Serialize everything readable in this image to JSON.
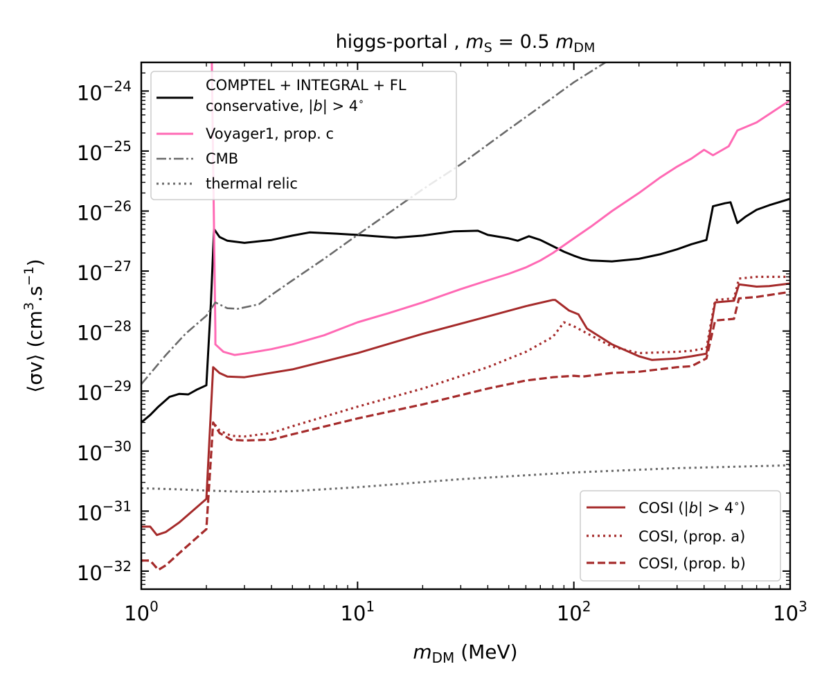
{
  "chart_data": {
    "type": "line",
    "title": "higgs-portal ,  m_S = 0.5 m_DM",
    "title_parts": {
      "prefix": "higgs-portal ,  ",
      "m": "m",
      "sub_s": "S",
      "eq": " = 0.5 ",
      "m2": "m",
      "sub_dm": "DM"
    },
    "xlabel": "m_DM (MeV)",
    "xlabel_parts": {
      "m": "m",
      "sub": "DM",
      "unit": " (MeV)"
    },
    "ylabel": "⟨σv⟩ (cm³.s⁻¹)",
    "ylabel_parts": {
      "pre": "⟨σv⟩ (cm",
      "sup1": "3",
      "mid": ".s",
      "sup2": "−1",
      "post": ")"
    },
    "xscale": "log",
    "yscale": "log",
    "xlim": [
      1,
      1000
    ],
    "ylim": [
      5e-33,
      3e-24
    ],
    "x_ticks": [
      {
        "base": "10",
        "exp": "0",
        "value": 1
      },
      {
        "base": "10",
        "exp": "1",
        "value": 10
      },
      {
        "base": "10",
        "exp": "2",
        "value": 100
      },
      {
        "base": "10",
        "exp": "3",
        "value": 1000
      }
    ],
    "y_ticks": [
      {
        "base": "10",
        "exp": "−24",
        "value": 1e-24
      },
      {
        "base": "10",
        "exp": "−25",
        "value": 1e-25
      },
      {
        "base": "10",
        "exp": "−26",
        "value": 1e-26
      },
      {
        "base": "10",
        "exp": "−27",
        "value": 1e-27
      },
      {
        "base": "10",
        "exp": "−28",
        "value": 1e-28
      },
      {
        "base": "10",
        "exp": "−29",
        "value": 1e-29
      },
      {
        "base": "10",
        "exp": "−30",
        "value": 1e-30
      },
      {
        "base": "10",
        "exp": "−31",
        "value": 1e-31
      },
      {
        "base": "10",
        "exp": "−32",
        "value": 1e-32
      }
    ],
    "series": [
      {
        "name": "COMPTEL + INTEGRAL + FL conservative, |b| > 4°",
        "legend_line1": "COMPTEL + INTEGRAL + FL",
        "legend_line2": "conservative, |b| > 4°",
        "legend_line2_parts": {
          "pre": "conservative, |",
          "b": "b",
          "post": "| > 4",
          "sup": "∘"
        },
        "color": "#000000",
        "dash": "solid",
        "width": 3,
        "points": [
          [
            1,
            3e-30
          ],
          [
            1.1,
            4e-30
          ],
          [
            1.2,
            5.5e-30
          ],
          [
            1.35,
            8e-30
          ],
          [
            1.5,
            9e-30
          ],
          [
            1.65,
            8.8e-30
          ],
          [
            1.8,
            1.05e-29
          ],
          [
            2.0,
            1.25e-29
          ],
          [
            2.1,
            3e-28
          ],
          [
            2.17,
            5e-27
          ],
          [
            2.3,
            3.7e-27
          ],
          [
            2.5,
            3.2e-27
          ],
          [
            3,
            2.95e-27
          ],
          [
            4,
            3.3e-27
          ],
          [
            5,
            3.9e-27
          ],
          [
            6,
            4.4e-27
          ],
          [
            8,
            4.2e-27
          ],
          [
            10,
            4e-27
          ],
          [
            12,
            3.8e-27
          ],
          [
            15,
            3.6e-27
          ],
          [
            20,
            3.9e-27
          ],
          [
            28,
            4.6e-27
          ],
          [
            36,
            4.7e-27
          ],
          [
            40,
            4e-27
          ],
          [
            50,
            3.5e-27
          ],
          [
            55,
            3.2e-27
          ],
          [
            62,
            3.8e-27
          ],
          [
            70,
            3.3e-27
          ],
          [
            80,
            2.6e-27
          ],
          [
            90,
            2.1e-27
          ],
          [
            100,
            1.8e-27
          ],
          [
            110,
            1.6e-27
          ],
          [
            120,
            1.5e-27
          ],
          [
            150,
            1.45e-27
          ],
          [
            200,
            1.6e-27
          ],
          [
            250,
            1.9e-27
          ],
          [
            300,
            2.3e-27
          ],
          [
            350,
            2.8e-27
          ],
          [
            410,
            3.3e-27
          ],
          [
            440,
            1.2e-26
          ],
          [
            500,
            1.35e-26
          ],
          [
            530,
            1.4e-26
          ],
          [
            570,
            6.3e-27
          ],
          [
            620,
            8e-27
          ],
          [
            700,
            1.05e-26
          ],
          [
            800,
            1.25e-26
          ],
          [
            1000,
            1.6e-26
          ]
        ]
      },
      {
        "name": "Voyager1, prop. c",
        "legend_label": "Voyager1, prop. c",
        "color": "#ff69b4",
        "dash": "solid",
        "width": 3,
        "points": [
          [
            2.12,
            3e-24
          ],
          [
            2.2,
            1e-28
          ],
          [
            2.2,
            6e-29
          ],
          [
            2.4,
            4.5e-29
          ],
          [
            2.7,
            4e-29
          ],
          [
            3,
            4.2e-29
          ],
          [
            4,
            5e-29
          ],
          [
            5,
            6e-29
          ],
          [
            7,
            8.5e-29
          ],
          [
            10,
            1.4e-28
          ],
          [
            14,
            2e-28
          ],
          [
            20,
            3e-28
          ],
          [
            30,
            5e-28
          ],
          [
            40,
            7e-28
          ],
          [
            50,
            9e-28
          ],
          [
            60,
            1.15e-27
          ],
          [
            70,
            1.5e-27
          ],
          [
            80,
            2e-27
          ],
          [
            100,
            3.5e-27
          ],
          [
            120,
            5.5e-27
          ],
          [
            150,
            1e-26
          ],
          [
            200,
            2e-26
          ],
          [
            250,
            3.6e-26
          ],
          [
            300,
            5.5e-26
          ],
          [
            350,
            7.5e-26
          ],
          [
            400,
            1.05e-25
          ],
          [
            440,
            8.5e-26
          ],
          [
            520,
            1.2e-25
          ],
          [
            570,
            2.2e-25
          ],
          [
            700,
            3e-25
          ],
          [
            1000,
            7e-25
          ]
        ]
      },
      {
        "name": "CMB",
        "legend_label": "CMB",
        "color": "#696969",
        "dash": "dashdot",
        "width": 2.6,
        "points": [
          [
            1,
            1.3e-29
          ],
          [
            1.3,
            4e-29
          ],
          [
            1.6,
            9e-29
          ],
          [
            2.0,
            1.8e-28
          ],
          [
            2.2,
            3e-28
          ],
          [
            2.5,
            2.4e-28
          ],
          [
            2.8,
            2.35e-28
          ],
          [
            3.5,
            2.8e-28
          ],
          [
            4,
            4e-28
          ],
          [
            5,
            7e-28
          ],
          [
            7,
            1.6e-27
          ],
          [
            10,
            4e-27
          ],
          [
            20,
            2.3e-26
          ],
          [
            30,
            6e-26
          ],
          [
            50,
            2.3e-25
          ],
          [
            70,
            5.5e-25
          ],
          [
            100,
            1.4e-24
          ],
          [
            140,
            3e-24
          ]
        ]
      },
      {
        "name": "thermal relic",
        "legend_label": "thermal relic",
        "color": "#696969",
        "dash": "dotted",
        "width": 3,
        "points": [
          [
            1,
            2.4e-31
          ],
          [
            1.5,
            2.3e-31
          ],
          [
            2,
            2.2e-31
          ],
          [
            3,
            2.1e-31
          ],
          [
            5,
            2.15e-31
          ],
          [
            10,
            2.5e-31
          ],
          [
            30,
            3.4e-31
          ],
          [
            100,
            4.4e-31
          ],
          [
            300,
            5.2e-31
          ],
          [
            1000,
            5.8e-31
          ]
        ]
      },
      {
        "name": "COSI (|b| > 4°)",
        "legend_parts": {
          "pre": "COSI (|",
          "b": "b",
          "post": "| > 4",
          "sup": "∘",
          "end": ")"
        },
        "color": "#a52a2a",
        "dash": "solid",
        "width": 3,
        "points": [
          [
            1,
            5.5e-32
          ],
          [
            1.1,
            5.5e-32
          ],
          [
            1.18,
            4e-32
          ],
          [
            1.3,
            4.5e-32
          ],
          [
            1.5,
            6.5e-32
          ],
          [
            2.0,
            1.6e-31
          ],
          [
            2.15,
            2.5e-29
          ],
          [
            2.3,
            2e-29
          ],
          [
            2.5,
            1.75e-29
          ],
          [
            3,
            1.7e-29
          ],
          [
            5,
            2.3e-29
          ],
          [
            10,
            4.3e-29
          ],
          [
            20,
            9e-29
          ],
          [
            40,
            1.75e-28
          ],
          [
            60,
            2.6e-28
          ],
          [
            80,
            3.3e-28
          ],
          [
            82,
            3.3e-28
          ],
          [
            95,
            2.2e-28
          ],
          [
            105,
            1.9e-28
          ],
          [
            115,
            1.1e-28
          ],
          [
            150,
            6e-29
          ],
          [
            200,
            3.8e-29
          ],
          [
            230,
            3.3e-29
          ],
          [
            300,
            3.5e-29
          ],
          [
            350,
            3.8e-29
          ],
          [
            410,
            4.2e-29
          ],
          [
            450,
            3e-28
          ],
          [
            550,
            3.2e-28
          ],
          [
            580,
            6e-28
          ],
          [
            700,
            5.5e-28
          ],
          [
            800,
            5.6e-28
          ],
          [
            1000,
            6.2e-28
          ]
        ]
      },
      {
        "name": "COSI, (prop. a)",
        "legend_label": "COSI, (prop. a)",
        "color": "#a52a2a",
        "dash": "dotted",
        "width": 3.2,
        "points": [
          [
            1,
            1.5e-32
          ],
          [
            1.1,
            1.5e-32
          ],
          [
            1.2,
            1.05e-32
          ],
          [
            1.3,
            1.25e-32
          ],
          [
            1.5,
            2e-32
          ],
          [
            2.0,
            5e-32
          ],
          [
            2.15,
            3e-30
          ],
          [
            2.3,
            2.2e-30
          ],
          [
            2.6,
            1.8e-30
          ],
          [
            3,
            1.75e-30
          ],
          [
            4,
            2e-30
          ],
          [
            5,
            2.6e-30
          ],
          [
            10,
            5.5e-30
          ],
          [
            20,
            1.1e-29
          ],
          [
            40,
            2.5e-29
          ],
          [
            60,
            4.5e-29
          ],
          [
            80,
            8e-29
          ],
          [
            90,
            1.4e-28
          ],
          [
            100,
            1.2e-28
          ],
          [
            110,
            1e-28
          ],
          [
            150,
            5.5e-29
          ],
          [
            200,
            4.3e-29
          ],
          [
            300,
            4.5e-29
          ],
          [
            350,
            4.7e-29
          ],
          [
            410,
            5.2e-29
          ],
          [
            450,
            3.3e-28
          ],
          [
            550,
            3.5e-28
          ],
          [
            580,
            7.5e-28
          ],
          [
            700,
            8e-28
          ],
          [
            1000,
            8e-28
          ]
        ]
      },
      {
        "name": "COSI, (prop. b)",
        "legend_label": "COSI, (prop. b)",
        "color": "#a52a2a",
        "dash": "dashed",
        "width": 3.2,
        "points": [
          [
            1,
            1.5e-32
          ],
          [
            1.1,
            1.5e-32
          ],
          [
            1.2,
            1.05e-32
          ],
          [
            1.3,
            1.25e-32
          ],
          [
            1.5,
            2e-32
          ],
          [
            2.0,
            5e-32
          ],
          [
            2.15,
            3e-30
          ],
          [
            2.3,
            2e-30
          ],
          [
            2.6,
            1.55e-30
          ],
          [
            3,
            1.5e-30
          ],
          [
            4,
            1.55e-30
          ],
          [
            5,
            1.9e-30
          ],
          [
            10,
            3.5e-30
          ],
          [
            20,
            6e-30
          ],
          [
            40,
            1.1e-29
          ],
          [
            60,
            1.5e-29
          ],
          [
            80,
            1.7e-29
          ],
          [
            100,
            1.8e-29
          ],
          [
            110,
            1.75e-29
          ],
          [
            150,
            2e-29
          ],
          [
            200,
            2.1e-29
          ],
          [
            300,
            2.5e-29
          ],
          [
            350,
            2.6e-29
          ],
          [
            410,
            3.5e-29
          ],
          [
            450,
            1.5e-28
          ],
          [
            550,
            1.6e-28
          ],
          [
            580,
            3.5e-28
          ],
          [
            700,
            3.7e-28
          ],
          [
            1000,
            4.5e-28
          ]
        ]
      }
    ],
    "legend_positions": [
      "upper-left",
      "lower-right"
    ]
  }
}
